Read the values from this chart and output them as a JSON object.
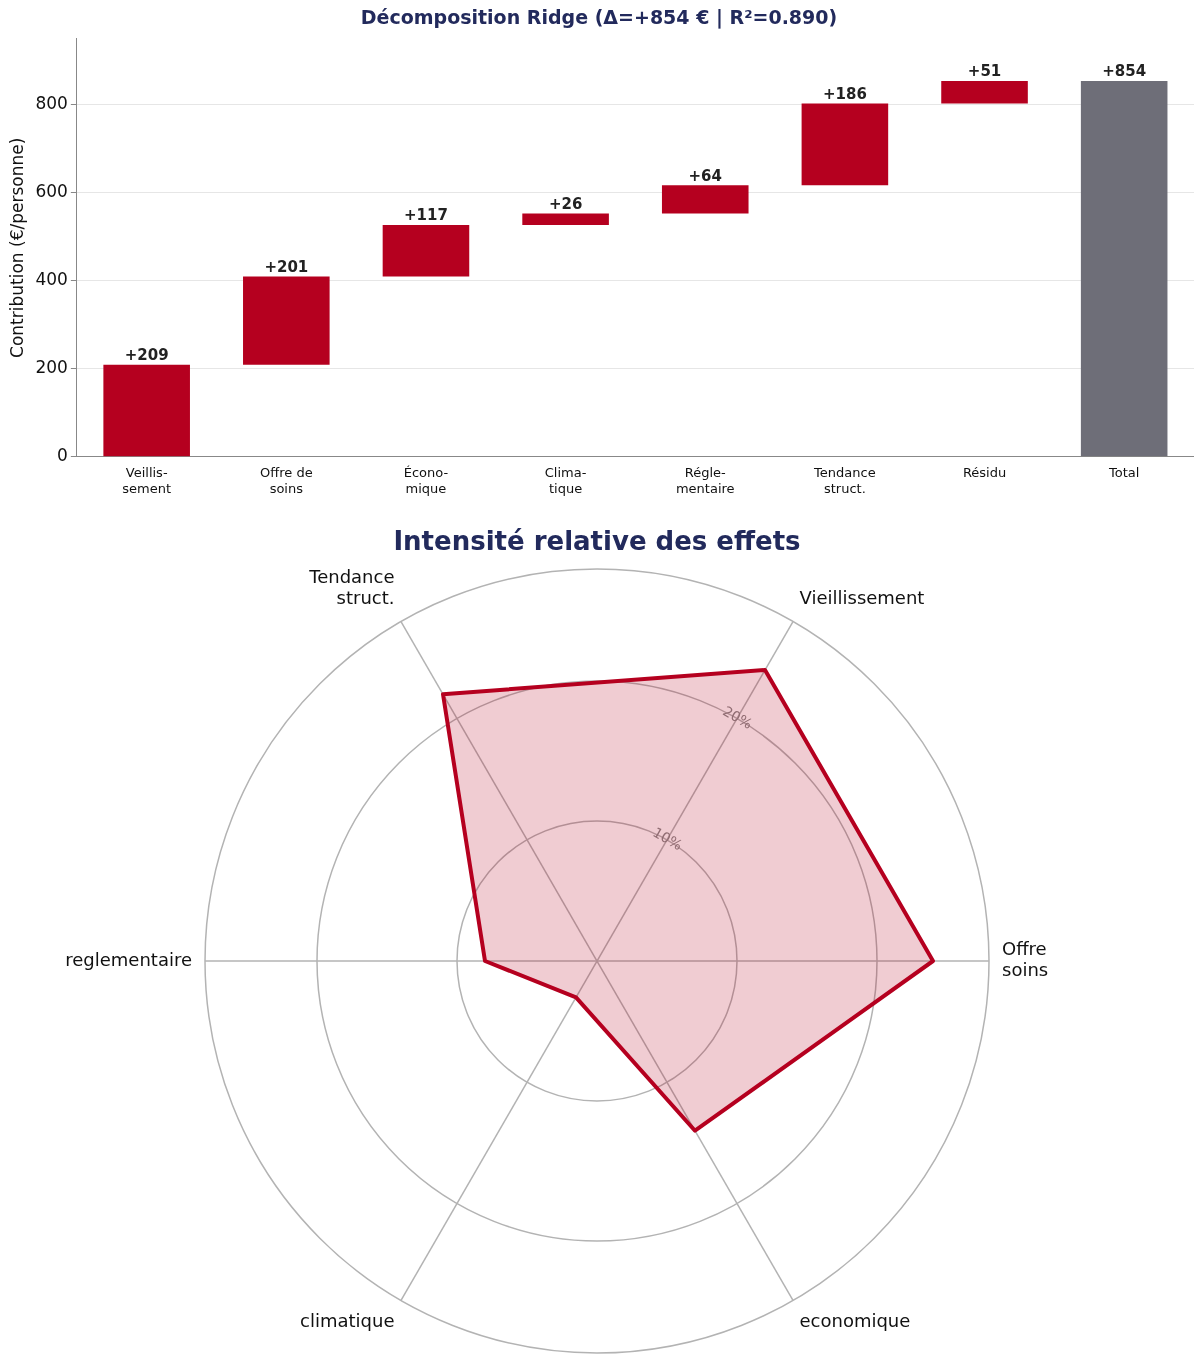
{
  "chart_data": [
    {
      "type": "bar",
      "title": "Décomposition Ridge (Δ=+854 € | R²=0.890)",
      "ylabel": "Contribution (€/personne)",
      "categories": [
        "Veillis-\nsement",
        "Offre de\nsoins",
        "Écono-\nmique",
        "Clima-\ntique",
        "Régle-\nmentaire",
        "Tendance\nstruct.",
        "Résidu",
        "Total"
      ],
      "values": [
        209,
        201,
        117,
        26,
        64,
        186,
        51,
        854
      ],
      "base": [
        0,
        209,
        410,
        527,
        553,
        617,
        803,
        0
      ],
      "colors": [
        "#b5001f",
        "#b5001f",
        "#b5001f",
        "#b5001f",
        "#b5001f",
        "#b5001f",
        "#b5001f",
        "#6e6e78"
      ],
      "value_labels": [
        "+209",
        "+201",
        "+117",
        "+26",
        "+64",
        "+186",
        "+51",
        "+854"
      ],
      "ylim": [
        0,
        950
      ],
      "yticks": [
        0,
        200,
        400,
        600,
        800
      ],
      "grid": "y",
      "legend": false
    },
    {
      "type": "radar",
      "title": "Intensité relative des effets",
      "categories": [
        "Vieillissement",
        "Offre\nsoins",
        "economique",
        "climatique",
        "reglementaire",
        "Tendance\nstruct."
      ],
      "series": [
        {
          "color": "#b5001f",
          "values": [
            24,
            24,
            14,
            3,
            8,
            22
          ]
        }
      ],
      "ylim": [
        0,
        28
      ],
      "yticks": [
        {
          "value": 10,
          "label": "10%"
        },
        {
          "value": 20,
          "label": "20%"
        }
      ],
      "grid": true,
      "legend": false
    }
  ]
}
